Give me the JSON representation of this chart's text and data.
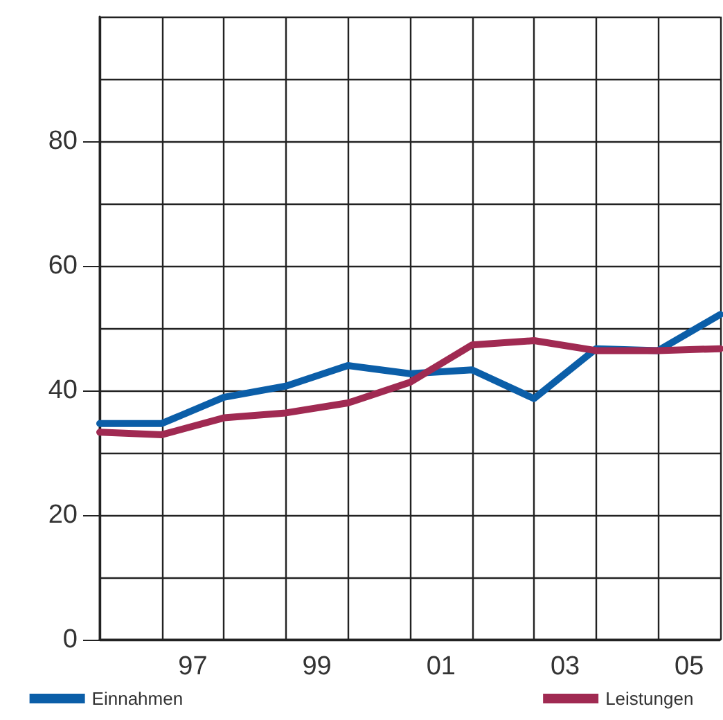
{
  "chart_data": {
    "type": "line",
    "x": [
      1995.5,
      1996.5,
      1997.5,
      1998.5,
      1999.5,
      2000.5,
      2001.5,
      2002.5,
      2003.5,
      2004.5,
      2005.5
    ],
    "series": [
      {
        "name": "Einnahmen",
        "color": "#0b5ea8",
        "values": [
          34.7,
          34.7,
          38.9,
          40.7,
          44,
          42.7,
          43.3,
          38.7,
          46.7,
          46.4,
          52.2
        ]
      },
      {
        "name": "Leistungen",
        "color": "#a02a52",
        "values": [
          33.3,
          32.9,
          35.6,
          36.4,
          38,
          41.3,
          47.3,
          48,
          46.4,
          46.4,
          46.7
        ]
      }
    ],
    "xlim": [
      1995.5,
      2005.5
    ],
    "xticks": [
      {
        "value": 1995.5,
        "label": null
      },
      {
        "value": 1996.5,
        "label": null
      },
      {
        "value": 1997,
        "label": "97"
      },
      {
        "value": 1997.5,
        "label": null
      },
      {
        "value": 1998.5,
        "label": null
      },
      {
        "value": 1999,
        "label": "99"
      },
      {
        "value": 1999.5,
        "label": null
      },
      {
        "value": 2000.5,
        "label": null
      },
      {
        "value": 2001,
        "label": "01"
      },
      {
        "value": 2001.5,
        "label": null
      },
      {
        "value": 2002.5,
        "label": null
      },
      {
        "value": 2003,
        "label": "03"
      },
      {
        "value": 2003.5,
        "label": null
      },
      {
        "value": 2004.5,
        "label": null
      },
      {
        "value": 2005,
        "label": "05"
      },
      {
        "value": 2005.5,
        "label": null
      }
    ],
    "ylim": [
      0,
      100
    ],
    "yticks": [
      0,
      {
        "value": 10,
        "label": null
      },
      20,
      {
        "value": 30,
        "label": null
      },
      40,
      {
        "value": 50,
        "label": null
      },
      60,
      {
        "value": 70,
        "label": null
      },
      80,
      {
        "value": 90,
        "label": null
      },
      {
        "value": 100,
        "label": null
      }
    ],
    "grid": true,
    "legend": "bottom",
    "marker": "none",
    "line_style": "solid"
  }
}
